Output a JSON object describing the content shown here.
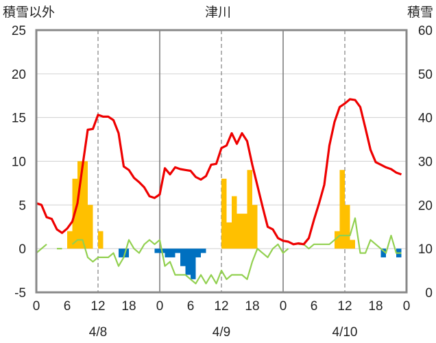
{
  "chart_data": {
    "type": "combo",
    "title": "津川",
    "left_axis": {
      "label": "積雪以外",
      "ylim": [
        -5,
        25
      ],
      "ticks": [
        -5,
        0,
        5,
        10,
        15,
        20,
        25
      ]
    },
    "right_axis": {
      "label": "積雪",
      "ylim": [
        0,
        60
      ],
      "ticks": [
        0,
        10,
        20,
        30,
        40,
        50,
        60
      ]
    },
    "x_range_hours": [
      0,
      72
    ],
    "x_tick_labels": [
      "0",
      "6",
      "12",
      "18",
      "0",
      "6",
      "12",
      "18",
      "0",
      "6",
      "12",
      "18",
      "0"
    ],
    "day_labels": [
      "4/8",
      "4/9",
      "4/10"
    ],
    "colors": {
      "temperature": "#ee0000",
      "precip_positive": "#ffc000",
      "precip_negative": "#0070c0",
      "snow_depth": "#92d050",
      "zero_baseline": "#7030a0",
      "frame": "#888888"
    },
    "temperature": {
      "x": [
        0,
        1,
        2,
        3,
        4,
        5,
        6,
        7,
        8,
        9,
        10,
        11,
        12,
        13,
        14,
        15,
        16,
        17,
        18,
        19,
        20,
        21,
        22,
        23,
        24,
        25,
        26,
        27,
        28,
        29,
        30,
        31,
        32,
        33,
        34,
        35,
        36,
        37,
        38,
        39,
        40,
        41,
        42,
        43,
        44,
        45,
        46,
        47,
        48,
        49,
        50,
        51,
        52,
        53,
        54,
        55,
        56,
        57,
        58,
        59,
        60,
        61,
        62,
        63,
        64,
        65,
        66,
        67,
        68,
        69,
        70,
        71
      ],
      "y": [
        5.2,
        5.0,
        3.6,
        3.4,
        2.2,
        1.8,
        2.3,
        3.1,
        5.2,
        9.5,
        13.6,
        13.7,
        15.3,
        15.1,
        15.1,
        14.7,
        13.2,
        9.4,
        9.0,
        8.1,
        7.6,
        7.0,
        6.0,
        5.8,
        6.2,
        9.2,
        8.5,
        9.3,
        9.1,
        9.0,
        8.9,
        8.2,
        7.9,
        8.3,
        9.6,
        9.7,
        11.5,
        11.8,
        13.2,
        12.0,
        13.2,
        12.3,
        9.6,
        7.2,
        4.8,
        2.5,
        2.2,
        1.2,
        0.9,
        0.8,
        0.5,
        0.6,
        0.5,
        1.2,
        3.3,
        5.2,
        7.3,
        11.8,
        14.5,
        16.2,
        16.6,
        17.1,
        17.0,
        16.2,
        13.8,
        11.3,
        9.9,
        9.6,
        9.3,
        9.1,
        8.7,
        8.5
      ]
    },
    "snow_depth": {
      "x": [
        0,
        1,
        2,
        3,
        4,
        5,
        6,
        7,
        8,
        9,
        10,
        11,
        12,
        13,
        14,
        15,
        16,
        17,
        18,
        19,
        20,
        21,
        22,
        23,
        24,
        25,
        26,
        27,
        28,
        29,
        30,
        31,
        32,
        33,
        34,
        35,
        36,
        37,
        38,
        39,
        40,
        41,
        42,
        43,
        44,
        45,
        46,
        47,
        48,
        49,
        50,
        51,
        52,
        53,
        54,
        55,
        56,
        57,
        58,
        59,
        60,
        61,
        62,
        63,
        64,
        65,
        66,
        67,
        68,
        69,
        70,
        71
      ],
      "y": [
        9,
        10,
        11,
        null,
        10,
        10,
        null,
        11,
        12,
        12,
        8,
        7,
        8,
        8,
        8,
        9,
        6,
        8,
        12,
        10,
        9,
        11,
        12,
        11,
        12,
        6,
        7,
        4,
        4,
        4,
        3,
        2,
        4,
        2,
        4,
        2,
        5,
        3,
        4,
        4,
        4,
        3,
        7,
        10,
        9,
        8,
        10,
        11,
        9,
        10,
        null,
        11,
        11,
        10,
        11,
        11,
        11,
        11,
        12,
        13,
        13,
        13,
        17,
        9,
        9,
        12,
        11,
        10,
        9,
        13,
        9,
        9
      ]
    },
    "precipitation": {
      "x": [
        1,
        2,
        3,
        4,
        5,
        6,
        7,
        8,
        9,
        10,
        11,
        12,
        13,
        14,
        15,
        16,
        17,
        18,
        19,
        20,
        21,
        22,
        23,
        24,
        25,
        26,
        27,
        28,
        29,
        30,
        31,
        32,
        33,
        34,
        35,
        36,
        37,
        38,
        39,
        40,
        41,
        42,
        43,
        44,
        45,
        46,
        47,
        48,
        49,
        50,
        51,
        52,
        53,
        54,
        55,
        56,
        57,
        58,
        59,
        60,
        61,
        62,
        63,
        64,
        65,
        66,
        67,
        68,
        69,
        70,
        71,
        72
      ],
      "y": [
        0,
        0,
        0,
        0,
        0,
        0,
        2,
        8,
        10,
        10,
        5,
        0,
        2,
        0,
        0,
        0,
        -1,
        -1,
        0,
        0,
        0,
        0,
        0,
        -0.5,
        -0.5,
        -1,
        -1,
        -0.5,
        -2,
        -3,
        -3.5,
        -1,
        -0.5,
        0,
        0,
        0,
        8,
        3,
        6,
        4,
        4,
        9,
        5,
        0,
        0,
        0,
        0,
        0,
        0,
        0,
        0,
        0,
        0,
        0,
        0,
        0,
        0,
        0,
        2,
        9,
        5,
        1,
        0,
        0,
        0,
        0,
        0,
        -1,
        0,
        0,
        -1,
        0
      ]
    }
  }
}
